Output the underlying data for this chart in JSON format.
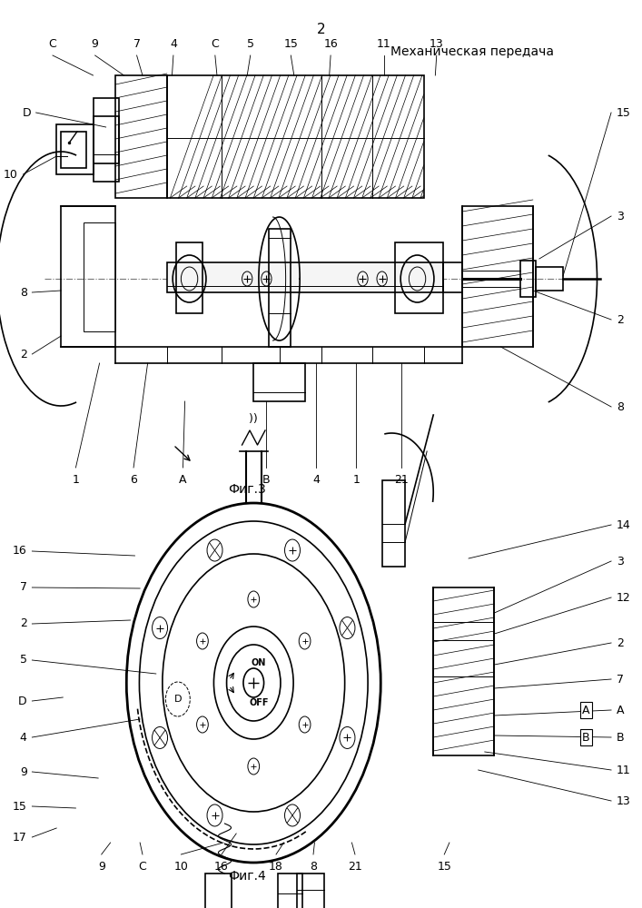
{
  "title_page_number": "2",
  "title_text": "Механическая передача",
  "fig3_label": "Фиг.3",
  "fig4_label": "Фиг.4",
  "bg_color": "#ffffff",
  "line_color": "#000000",
  "hatch_color": "#000000"
}
